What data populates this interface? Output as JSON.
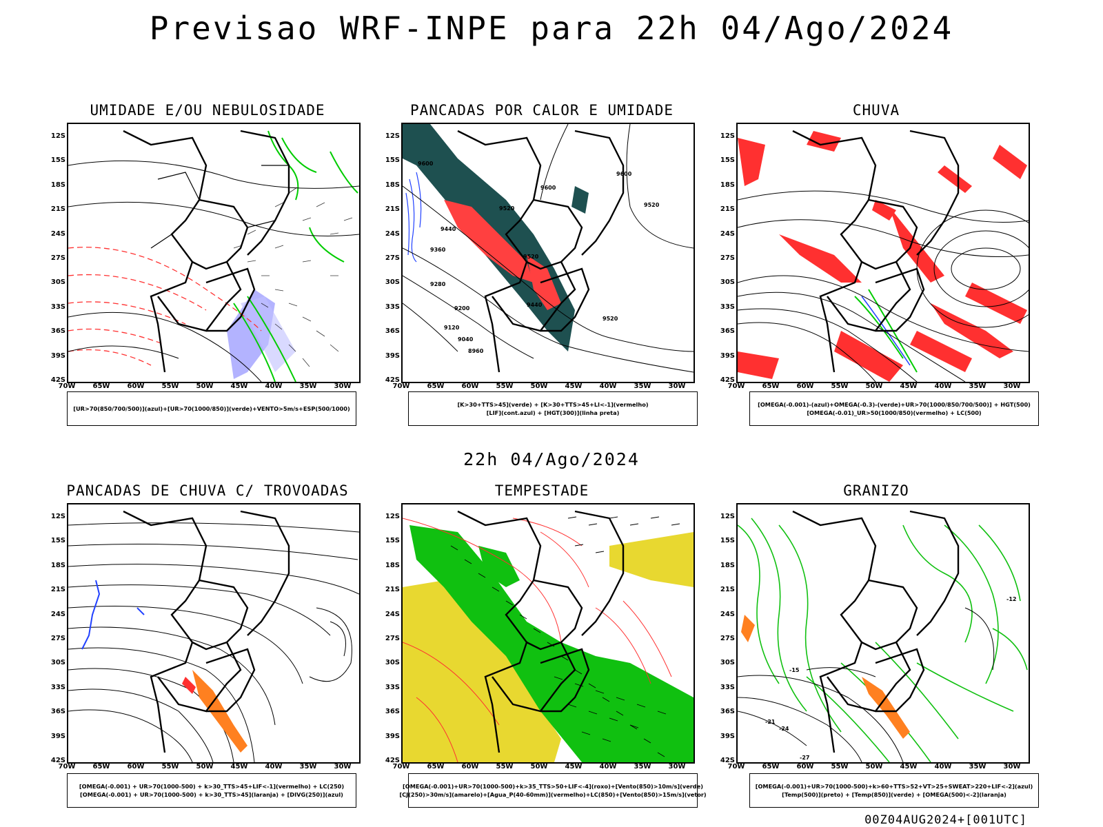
{
  "title": "Previsao WRF-INPE  para 22h 04/Ago/2024",
  "subtitle": "22h 04/Ago/2024",
  "footer": "00Z04AUG2024+[001UTC]",
  "lat_labels": [
    "12S",
    "15S",
    "18S",
    "21S",
    "24S",
    "27S",
    "30S",
    "33S",
    "36S",
    "39S",
    "42S"
  ],
  "lon_labels": [
    "70W",
    "65W",
    "60W",
    "55W",
    "50W",
    "45W",
    "40W",
    "35W",
    "30W"
  ],
  "panels": [
    {
      "title": "UMIDADE E/OU NEBULOSIDADE",
      "legend": [
        "[UR>70(850/700/500)](azul)+[UR>70(1000/850)](verde)+VENTO>5m/s+ESP(500/1000)"
      ],
      "colors": {
        "humidity_high": "#8080ff",
        "humidity_low": "#00cc00",
        "thickness": "#ff3030"
      }
    },
    {
      "title": "PANCADAS POR CALOR E UMIDADE",
      "legend": [
        "[K>30+TTS>45](verde)  +  [K>30+TTS>45+LI<-1](vermelho)",
        "[LIF](cont.azul)  +  [HGT(300)](linha preta)"
      ],
      "contour_labels": [
        "9600",
        "9600",
        "9520",
        "9600",
        "9520",
        "9440",
        "9360",
        "9520",
        "9280",
        "9440",
        "9200",
        "9520",
        "9120",
        "9040",
        "8960"
      ],
      "colors": {
        "instability": "#1e5050",
        "strong": "#ff4040",
        "lif": "#2040ff"
      }
    },
    {
      "title": "CHUVA",
      "legend": [
        "[OMEGA(-0.001)-(azul)+OMEGA(-0.3)-(verde)+UR>70(1000/850/700/500)] + HGT(500)",
        "[OMEGA(-0.01)_UR>50(1000/850)(vermelho) + LC(500)"
      ],
      "colors": {
        "rain": "#ff3030",
        "omega_blue": "#2040ff",
        "omega_green": "#00cc00"
      }
    },
    {
      "title": "PANCADAS DE CHUVA C/ TROVOADAS",
      "legend": [
        "[OMEGA(-0.001) + UR>70(1000-500) + k>30_TTS>45+LIF<-1](vermelho) + LC(250)",
        "[OMEGA(-0.001) + UR>70(1000-500) + k>30_TTS>45](laranja) + [DIVG(250)](azul)"
      ],
      "colors": {
        "thunder": "#ff3030",
        "showers": "#ff8020",
        "divergence": "#2040ff"
      }
    },
    {
      "title": "TEMPESTADE",
      "legend": [
        "[OMEGA(-0.001)+UR>70(1000-500)+k>35_TTS>50+LIF<-4](roxo)+[Vento(850)>10m/s](verde)",
        "[CJ(250)>30m/s](amarelo)+[Agua_P(40-60mm)](vermelho)+LC(850)+[Vento(850)>15m/s](vetor)"
      ],
      "colors": {
        "jet": "#e8d830",
        "wind": "#10c010",
        "water": "#ff3030"
      }
    },
    {
      "title": "GRANIZO",
      "legend": [
        "[OMEGA(-0.001)+UR>70(1000-500)+k>60+TTS>52+VT>25+SWEAT>220+LIF<-2](azul)",
        "[Temp(500)](preto) + [Temp(850)](verde) + [OMEGA(500)<-2](laranja)"
      ],
      "contour_labels": [
        "-15",
        "-12",
        "-21",
        "-24",
        "-27"
      ],
      "colors": {
        "temp850": "#10c010",
        "omega500": "#ff8020"
      }
    }
  ]
}
